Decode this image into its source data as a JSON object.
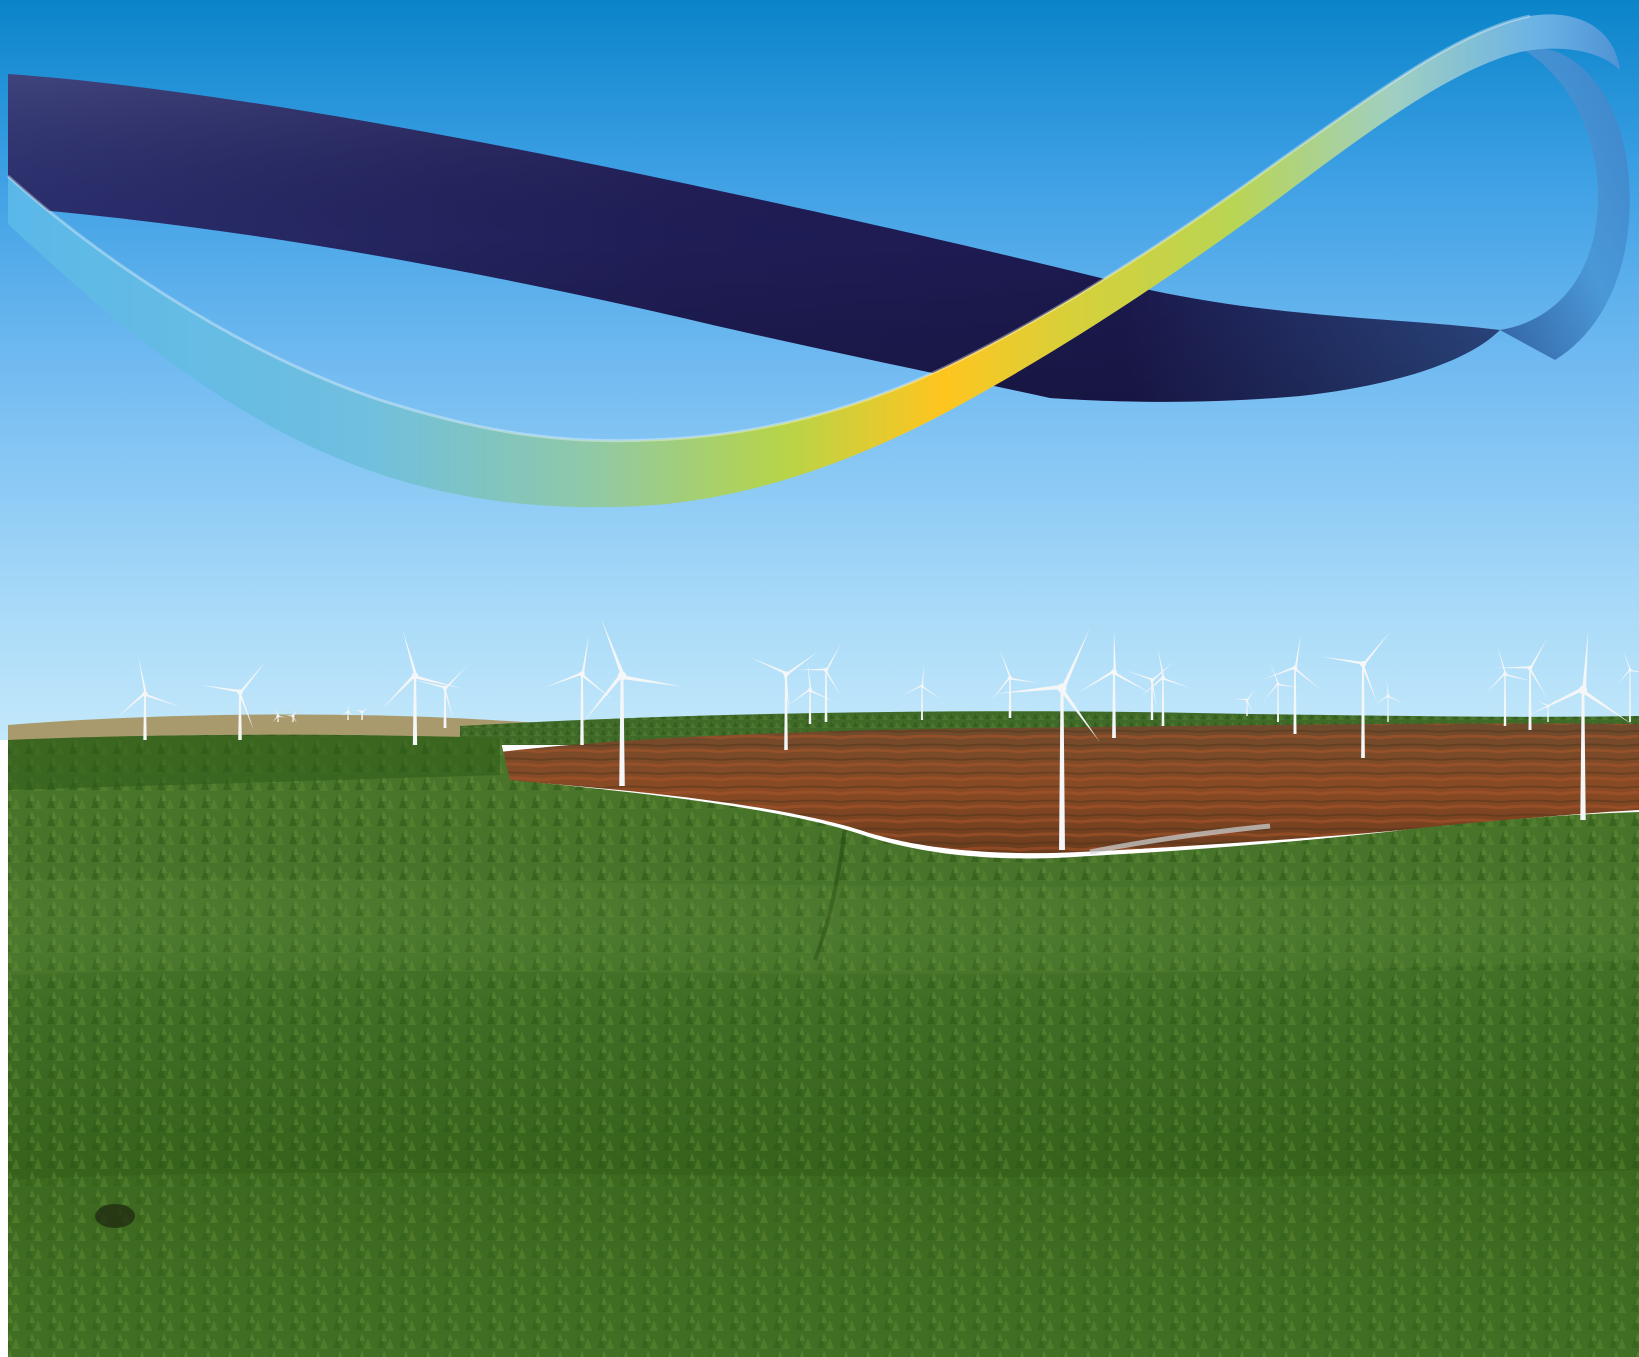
{
  "scene": {
    "subject": "wind-farm-landscape",
    "colors": {
      "sky_top": "#0a84c9",
      "sky_mid": "#5fb0ee",
      "sky_horizon": "#bfe6fb",
      "forest_far": "#3d6a22",
      "forest_mid": "#4d7a2a",
      "forest_near": "#2f5a17",
      "bog_brown": "#7a4a26",
      "bog_red": "#8f3d1f",
      "turbine": "#f4f6f8",
      "ribbon_navy": "#23225a",
      "ribbon_sky": "#59b6e6",
      "ribbon_lime": "#b6d44a",
      "ribbon_gold": "#ffc51f"
    },
    "elements": [
      "sky-background",
      "swoosh-ribbon",
      "distant-hills",
      "peat-bog-field",
      "conifer-forest",
      "wind-turbines",
      "bird-shadow"
    ]
  }
}
